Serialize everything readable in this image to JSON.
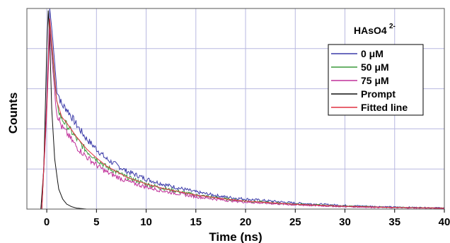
{
  "chart_data": {
    "type": "line",
    "xlabel": "Time (ns)",
    "ylabel": "Counts",
    "xlim": [
      -2,
      40
    ],
    "ylim": [
      0,
      1.0
    ],
    "xticks": [
      "0",
      "5",
      "10",
      "15",
      "20",
      "25",
      "30",
      "35",
      "40"
    ],
    "xtick_values": [
      0,
      5,
      10,
      15,
      20,
      25,
      30,
      35,
      40
    ],
    "y_gridlines": [
      0.2,
      0.4,
      0.6,
      0.8,
      1.0
    ],
    "x_gridlines": [
      0,
      5,
      10,
      15,
      20,
      25,
      30,
      35,
      40
    ],
    "grid": true,
    "legend": {
      "position": "top-right",
      "title": "HAsO4",
      "title_superscript": "2-"
    },
    "series": [
      {
        "name": "0 μM",
        "color": "#3a3aa8",
        "x": [
          -0.5,
          0,
          0.3,
          0.6,
          1,
          1.5,
          2,
          3,
          4,
          5,
          6,
          8,
          10,
          12,
          15,
          18,
          20,
          25,
          30,
          35,
          40
        ],
        "y": [
          0,
          0.55,
          1.0,
          0.85,
          0.6,
          0.52,
          0.5,
          0.42,
          0.35,
          0.3,
          0.25,
          0.19,
          0.15,
          0.12,
          0.085,
          0.06,
          0.05,
          0.03,
          0.018,
          0.01,
          0.006
        ]
      },
      {
        "name": "50 μM",
        "color": "#3a9a3a",
        "x": [
          -0.5,
          0,
          0.3,
          0.6,
          1,
          1.5,
          2,
          3,
          4,
          5,
          6,
          8,
          10,
          12,
          15,
          18,
          20,
          25,
          30,
          35,
          40
        ],
        "y": [
          0,
          0.5,
          0.92,
          0.75,
          0.52,
          0.45,
          0.42,
          0.35,
          0.29,
          0.25,
          0.21,
          0.16,
          0.125,
          0.1,
          0.07,
          0.05,
          0.04,
          0.024,
          0.014,
          0.008,
          0.005
        ]
      },
      {
        "name": "75 μM",
        "color": "#c0309a",
        "x": [
          -0.5,
          0,
          0.3,
          0.6,
          1,
          1.5,
          2,
          3,
          4,
          5,
          6,
          8,
          10,
          12,
          15,
          18,
          20,
          25,
          30,
          35,
          40
        ],
        "y": [
          0,
          0.48,
          0.9,
          0.7,
          0.48,
          0.41,
          0.38,
          0.31,
          0.26,
          0.22,
          0.185,
          0.14,
          0.11,
          0.087,
          0.062,
          0.044,
          0.035,
          0.021,
          0.012,
          0.007,
          0.004
        ]
      },
      {
        "name": "Prompt",
        "color": "#111111",
        "x": [
          -0.6,
          -0.3,
          0,
          0.15,
          0.3,
          0.5,
          0.8,
          1.2,
          1.6,
          2,
          2.5,
          3,
          4,
          40
        ],
        "y": [
          0,
          0.2,
          0.8,
          0.99,
          0.85,
          0.5,
          0.25,
          0.1,
          0.05,
          0.025,
          0.012,
          0.005,
          0.0,
          0.0
        ]
      },
      {
        "name": "Fitted line",
        "color": "#e03040",
        "x": [
          -0.5,
          0,
          0.3,
          0.6,
          1,
          1.5,
          2,
          3,
          4,
          5,
          6,
          8,
          10,
          12,
          15,
          18,
          20,
          25,
          30,
          35,
          40
        ],
        "y": [
          0,
          0.52,
          0.95,
          0.78,
          0.54,
          0.46,
          0.43,
          0.36,
          0.3,
          0.255,
          0.215,
          0.16,
          0.125,
          0.1,
          0.07,
          0.05,
          0.04,
          0.024,
          0.014,
          0.008,
          0.005
        ]
      }
    ]
  }
}
